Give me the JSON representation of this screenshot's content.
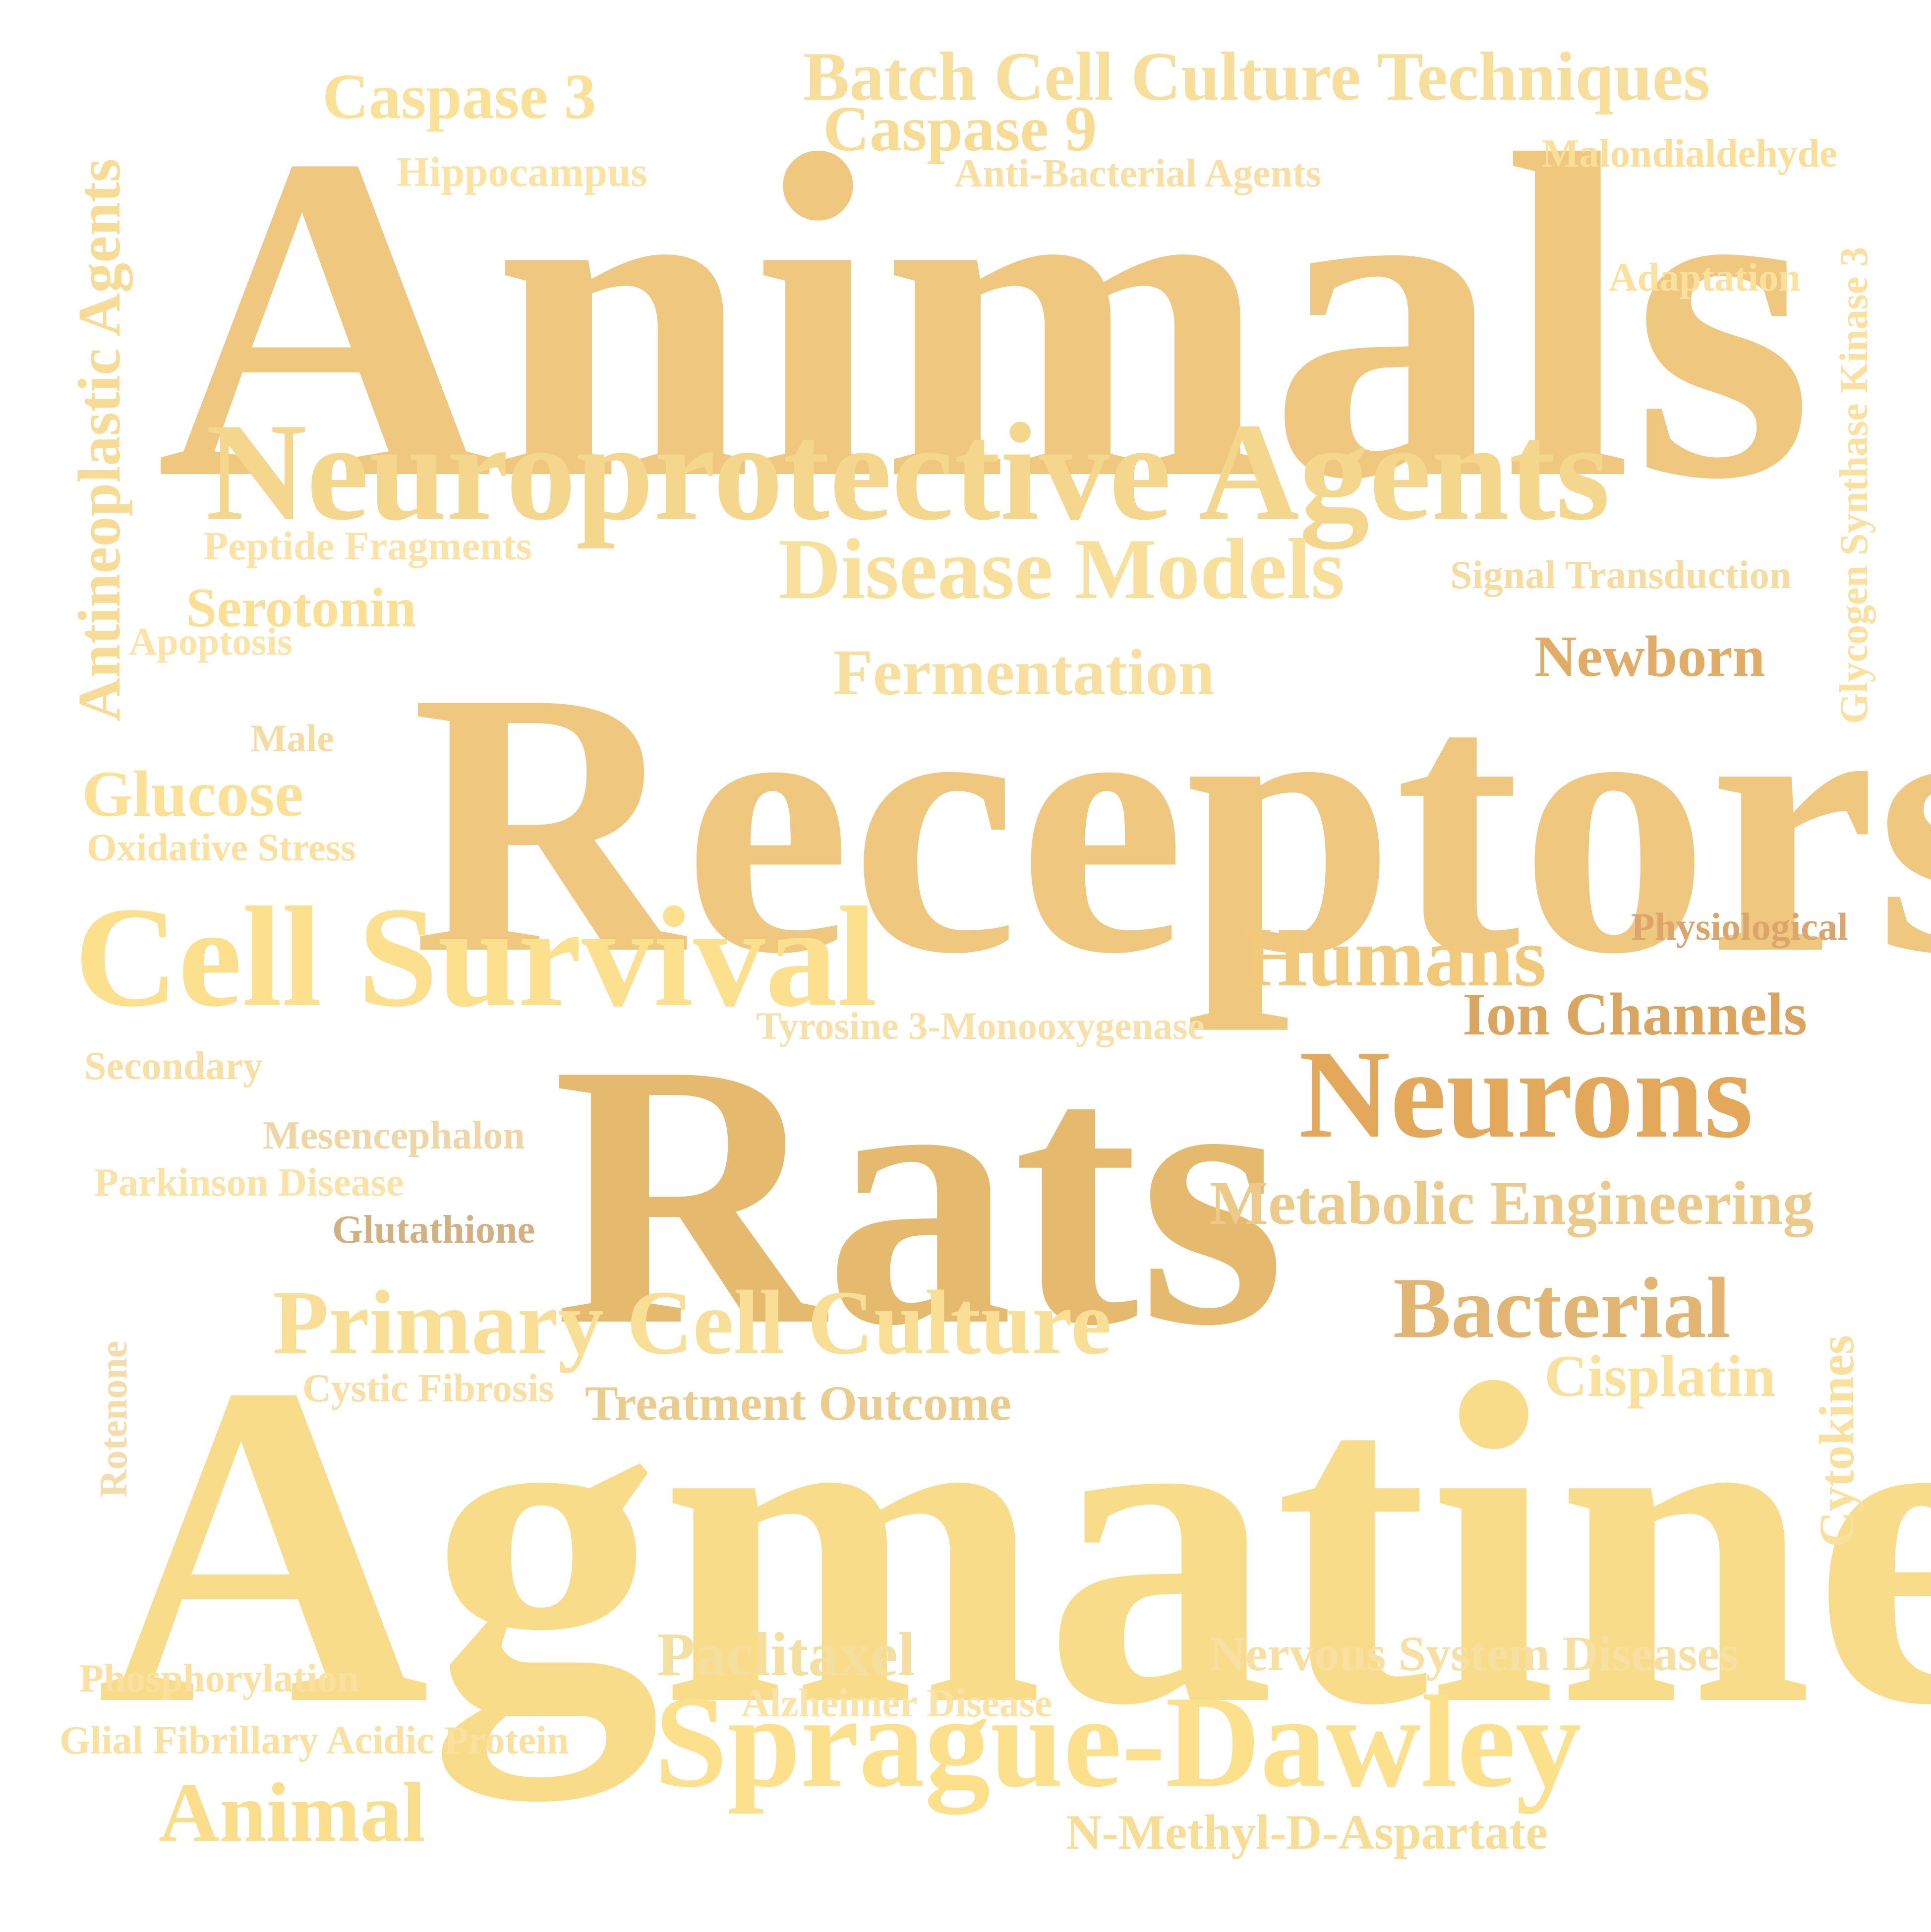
{
  "words": [
    {
      "id": "animals",
      "text": "Animals",
      "color": "#efc77f"
    },
    {
      "id": "receptors",
      "text": "Receptors",
      "color": "#efc77f"
    },
    {
      "id": "agmatine",
      "text": "Agmatine",
      "color": "#f9dc89"
    },
    {
      "id": "rats",
      "text": "Rats",
      "color": "#e6ba6e"
    },
    {
      "id": "neuroprotective-agents",
      "text": "Neuroprotective Agents",
      "color": "#f4d68c"
    },
    {
      "id": "cell-survival",
      "text": "Cell Survival",
      "color": "#fce08e"
    },
    {
      "id": "sprague-dawley",
      "text": "Sprague-Dawley",
      "color": "#fde08c"
    },
    {
      "id": "neurons",
      "text": "Neurons",
      "color": "#e3a85a"
    },
    {
      "id": "batch-cell-culture-techniques",
      "text": "Batch Cell Culture Techniques",
      "color": "#f7de9b"
    },
    {
      "id": "disease-models",
      "text": "Disease Models",
      "color": "#f8df9a"
    },
    {
      "id": "primary-cell-culture",
      "text": "Primary Cell Culture",
      "color": "#f9df95"
    },
    {
      "id": "humans",
      "text": "Humans",
      "color": "#f2c97a"
    },
    {
      "id": "bacterial",
      "text": "Bacterial",
      "color": "#e2b672"
    },
    {
      "id": "antineoplastic-agents",
      "text": "Antineoplastic Agents",
      "color": "#f8dc96"
    },
    {
      "id": "caspase-3",
      "text": "Caspase 3",
      "color": "#fbe196"
    },
    {
      "id": "caspase-9",
      "text": "Caspase 9",
      "color": "#f8dc94"
    },
    {
      "id": "fermentation",
      "text": "Fermentation",
      "color": "#f8df9d"
    },
    {
      "id": "glucose",
      "text": "Glucose",
      "color": "#fae195"
    },
    {
      "id": "metabolic-engineering",
      "text": "Metabolic Engineering",
      "color": "#ecca8a"
    },
    {
      "id": "ion-channels",
      "text": "Ion Channels",
      "color": "#dba55f"
    },
    {
      "id": "newborn",
      "text": "Newborn",
      "color": "#e3ac66"
    },
    {
      "id": "paclitaxel",
      "text": "Paclitaxel",
      "color": "#f4df9e"
    },
    {
      "id": "cisplatin",
      "text": "Cisplatin",
      "color": "#f9e19c"
    },
    {
      "id": "animal",
      "text": "Animal",
      "color": "#fbde8c"
    },
    {
      "id": "serotonin",
      "text": "Serotonin",
      "color": "#fbdf92"
    },
    {
      "id": "treatment-outcome",
      "text": "Treatment Outcome",
      "color": "#eccc8c"
    },
    {
      "id": "nervous-system-diseases",
      "text": "Nervous System Diseases",
      "color": "#f8e0a2"
    },
    {
      "id": "n-methyl-d-aspartate",
      "text": "N-Methyl-D-Aspartate",
      "color": "#f8dd94"
    },
    {
      "id": "cytokines",
      "text": "Cytokines",
      "color": "#fbe09c"
    },
    {
      "id": "glycogen-synthase-kinase-3",
      "text": "Glycogen Synthase Kinase 3",
      "color": "#fbe09e"
    },
    {
      "id": "hippocampus",
      "text": "Hippocampus",
      "color": "#fde3a2"
    },
    {
      "id": "anti-bacterial-agents",
      "text": "Anti-Bacterial Agents",
      "color": "#f9e0a2"
    },
    {
      "id": "malondialdehyde",
      "text": "Malondialdehyde",
      "color": "#fbdf98"
    },
    {
      "id": "adaptation",
      "text": "Adaptation",
      "color": "#fbe19c"
    },
    {
      "id": "peptide-fragments",
      "text": "Peptide Fragments",
      "color": "#fbe3a6"
    },
    {
      "id": "signal-transduction",
      "text": "Signal Transduction",
      "color": "#f7dca0"
    },
    {
      "id": "apoptosis",
      "text": "Apoptosis",
      "color": "#fce4a6"
    },
    {
      "id": "male",
      "text": "Male",
      "color": "#f6dca3"
    },
    {
      "id": "oxidative-stress",
      "text": "Oxidative Stress",
      "color": "#fce19e"
    },
    {
      "id": "physiological",
      "text": "Physiological",
      "color": "#dca56b"
    },
    {
      "id": "tyrosine-3-monooxygenase",
      "text": "Tyrosine 3-Monooxygenase",
      "color": "#f8e1a8"
    },
    {
      "id": "secondary",
      "text": "Secondary",
      "color": "#f8dfa2"
    },
    {
      "id": "mesencephalon",
      "text": "Mesencephalon",
      "color": "#f0d6a6"
    },
    {
      "id": "parkinson-disease",
      "text": "Parkinson Disease",
      "color": "#fbe2a5"
    },
    {
      "id": "glutathione",
      "text": "Glutathione",
      "color": "#d2b080"
    },
    {
      "id": "cystic-fibrosis",
      "text": "Cystic Fibrosis",
      "color": "#f9dfa1"
    },
    {
      "id": "rotenone",
      "text": "Rotenone",
      "color": "#f6dca8"
    },
    {
      "id": "phosphorylation",
      "text": "Phosphorylation",
      "color": "#fbe0a0"
    },
    {
      "id": "alzheimer-disease",
      "text": "Alzheimer Disease",
      "color": "#fbe3a6"
    },
    {
      "id": "glial-fibrillary-acidic-protein",
      "text": "Glial Fibrillary Acidic Protein",
      "color": "#fbe1a0"
    }
  ]
}
